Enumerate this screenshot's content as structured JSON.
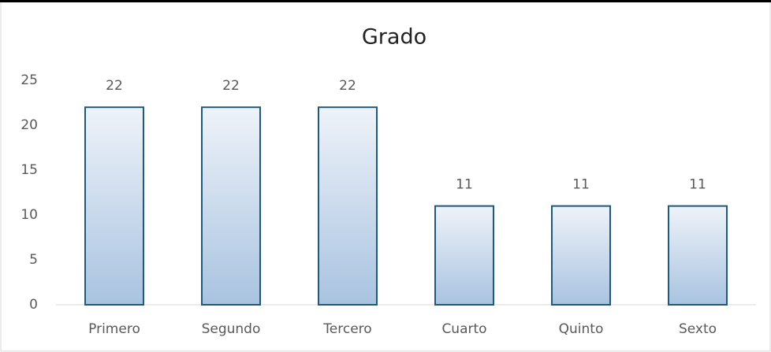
{
  "chart_data": {
    "type": "bar",
    "title": "Grado",
    "categories": [
      "Primero",
      "Segundo",
      "Tercero",
      "Cuarto",
      "Quinto",
      "Sexto"
    ],
    "values": [
      22,
      22,
      22,
      11,
      11,
      11
    ],
    "color": "#a9c3e0",
    "ylim": [
      0,
      25
    ],
    "yticks": [
      0,
      5,
      10,
      15,
      20,
      25
    ],
    "grid": false
  }
}
